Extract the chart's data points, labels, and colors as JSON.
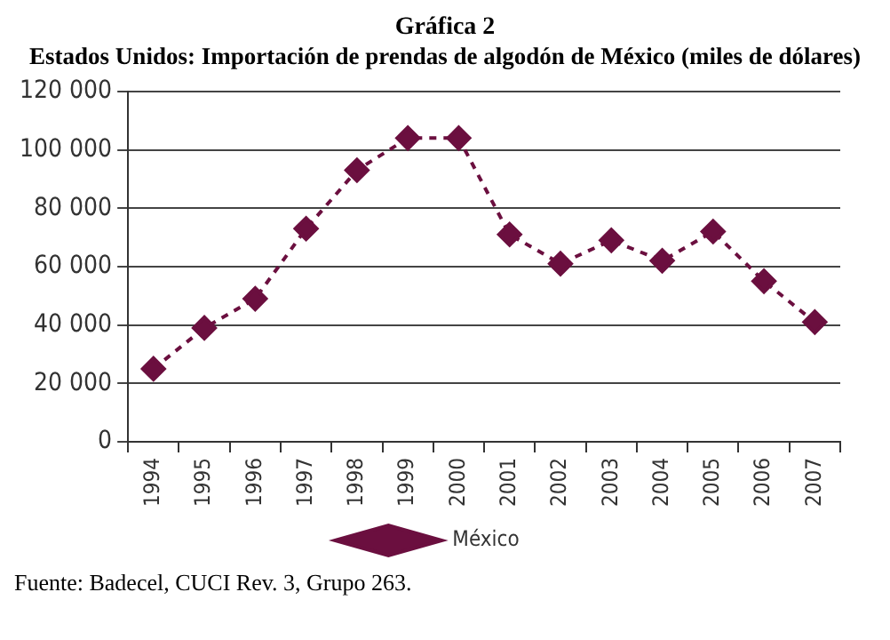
{
  "chart_data": {
    "type": "line",
    "title": "Gráfica 2",
    "subtitle": "Estados Unidos: Importación de prendas de algodón de México (miles de dólares)",
    "categories": [
      "1994",
      "1995",
      "1996",
      "1997",
      "1998",
      "1999",
      "2000",
      "2001",
      "2002",
      "2003",
      "2004",
      "2005",
      "2006",
      "2007"
    ],
    "series": [
      {
        "name": "México",
        "color": "#6b0f3f",
        "values": [
          25000,
          39000,
          49000,
          73000,
          93000,
          104000,
          104000,
          71000,
          61000,
          69000,
          62000,
          72000,
          55000,
          41000
        ]
      }
    ],
    "ylim": [
      0,
      120000
    ],
    "yticks": [
      0,
      {
        "value": 20000,
        "label": "20 000"
      },
      {
        "value": 40000,
        "label": "40 000"
      },
      {
        "value": 60000,
        "label": "60 000"
      },
      {
        "value": 80000,
        "label": "80 000"
      },
      {
        "value": 100000,
        "label": "100 000"
      },
      {
        "value": 120000,
        "label": "120 000"
      }
    ],
    "grid": "y",
    "legend": "bottom",
    "marker": "diamond",
    "line_style": "dashed",
    "annotations": [
      "Fuente: Badecel, CUCI Rev. 3, Grupo 263."
    ]
  }
}
